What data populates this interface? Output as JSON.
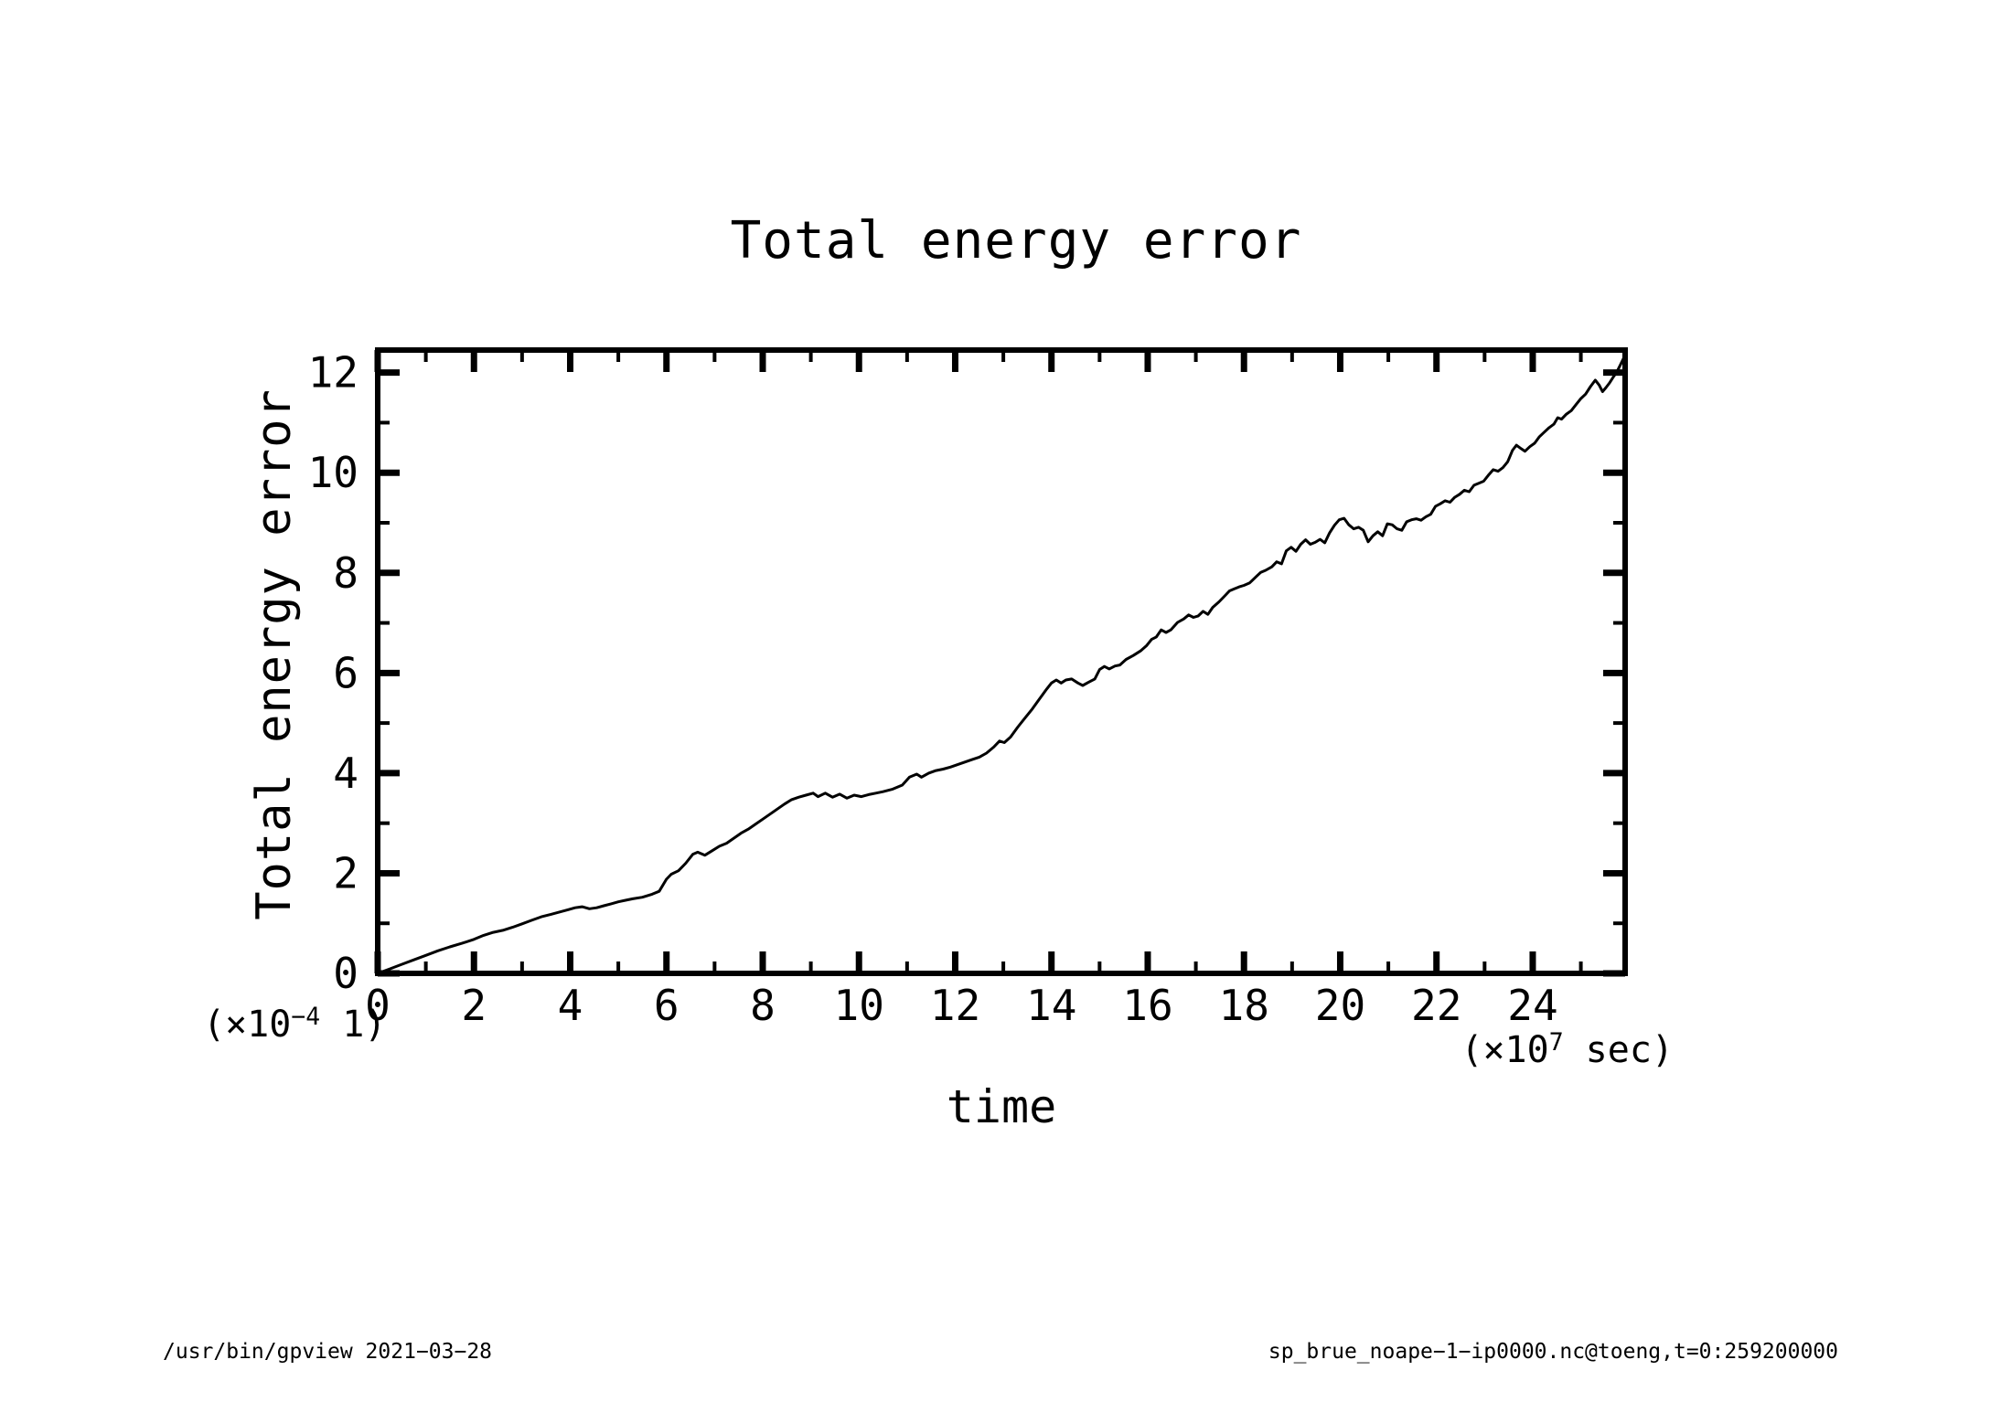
{
  "page": {
    "background": "#ffffff",
    "ink": "#000000"
  },
  "header": {
    "title": "Total energy error"
  },
  "axes": {
    "x": {
      "label": "time",
      "unit": {
        "prefix": "(×10",
        "sup": "7",
        "suffix": " sec)"
      },
      "tick_labels": [
        "0",
        "2",
        "4",
        "6",
        "8",
        "10",
        "12",
        "14",
        "16",
        "18",
        "20",
        "22",
        "24"
      ]
    },
    "y": {
      "label": "Total energy error",
      "unit": {
        "prefix": "(×10",
        "sup": "−4",
        "suffix": " 1)"
      },
      "tick_labels": [
        "0",
        "2",
        "4",
        "6",
        "8",
        "10",
        "12"
      ]
    }
  },
  "footer": {
    "left": "/usr/bin/gpview  2021−03−28",
    "right": "sp_brue_noape−1−ip0000.nc@toeng,t=0:259200000"
  },
  "chart_data": {
    "type": "line",
    "title": "Total energy error",
    "xlabel": "time",
    "ylabel": "Total energy error",
    "x_unit_annotation": "(×10^7 sec)",
    "y_unit_annotation": "(×10^-4 1)",
    "xlim": [
      0,
      25.92
    ],
    "ylim": [
      0,
      12.45
    ],
    "x_major_ticks": [
      0,
      2,
      4,
      6,
      8,
      10,
      12,
      14,
      16,
      18,
      20,
      22,
      24
    ],
    "x_minor_ticks": [
      1,
      3,
      5,
      7,
      9,
      11,
      13,
      15,
      17,
      19,
      21,
      23,
      25
    ],
    "y_major_ticks": [
      0,
      2,
      4,
      6,
      8,
      10,
      12
    ],
    "y_minor_ticks": [
      1,
      3,
      5,
      7,
      9,
      11
    ],
    "grid": false,
    "legend": null,
    "line_color": "#000000",
    "series": [
      {
        "name": "total energy error",
        "points": [
          [
            0,
            0
          ],
          [
            0.25,
            0.09
          ],
          [
            0.5,
            0.18
          ],
          [
            0.75,
            0.27
          ],
          [
            1,
            0.36
          ],
          [
            1.25,
            0.45
          ],
          [
            1.5,
            0.53
          ],
          [
            1.75,
            0.6
          ],
          [
            2,
            0.68
          ],
          [
            2.2,
            0.76
          ],
          [
            2.4,
            0.82
          ],
          [
            2.6,
            0.86
          ],
          [
            2.8,
            0.92
          ],
          [
            3,
            0.99
          ],
          [
            3.2,
            1.06
          ],
          [
            3.4,
            1.13
          ],
          [
            3.6,
            1.18
          ],
          [
            3.8,
            1.23
          ],
          [
            3.95,
            1.27
          ],
          [
            4.1,
            1.31
          ],
          [
            4.25,
            1.33
          ],
          [
            4.4,
            1.29
          ],
          [
            4.55,
            1.31
          ],
          [
            4.7,
            1.35
          ],
          [
            4.85,
            1.39
          ],
          [
            5,
            1.43
          ],
          [
            5.15,
            1.46
          ],
          [
            5.3,
            1.49
          ],
          [
            5.5,
            1.52
          ],
          [
            5.7,
            1.58
          ],
          [
            5.85,
            1.64
          ],
          [
            6,
            1.88
          ],
          [
            6.1,
            1.98
          ],
          [
            6.25,
            2.05
          ],
          [
            6.4,
            2.2
          ],
          [
            6.55,
            2.38
          ],
          [
            6.65,
            2.42
          ],
          [
            6.8,
            2.36
          ],
          [
            6.95,
            2.45
          ],
          [
            7.1,
            2.54
          ],
          [
            7.25,
            2.6
          ],
          [
            7.4,
            2.7
          ],
          [
            7.55,
            2.8
          ],
          [
            7.7,
            2.88
          ],
          [
            7.85,
            2.98
          ],
          [
            8,
            3.08
          ],
          [
            8.15,
            3.18
          ],
          [
            8.3,
            3.28
          ],
          [
            8.45,
            3.38
          ],
          [
            8.6,
            3.47
          ],
          [
            8.75,
            3.52
          ],
          [
            8.9,
            3.56
          ],
          [
            9.05,
            3.6
          ],
          [
            9.15,
            3.53
          ],
          [
            9.3,
            3.6
          ],
          [
            9.45,
            3.52
          ],
          [
            9.6,
            3.58
          ],
          [
            9.75,
            3.5
          ],
          [
            9.9,
            3.56
          ],
          [
            10.05,
            3.53
          ],
          [
            10.2,
            3.57
          ],
          [
            10.35,
            3.6
          ],
          [
            10.5,
            3.63
          ],
          [
            10.7,
            3.68
          ],
          [
            10.9,
            3.76
          ],
          [
            11.05,
            3.92
          ],
          [
            11.2,
            3.98
          ],
          [
            11.3,
            3.92
          ],
          [
            11.45,
            4
          ],
          [
            11.6,
            4.05
          ],
          [
            11.75,
            4.08
          ],
          [
            11.9,
            4.12
          ],
          [
            12.05,
            4.17
          ],
          [
            12.2,
            4.22
          ],
          [
            12.35,
            4.27
          ],
          [
            12.5,
            4.32
          ],
          [
            12.65,
            4.4
          ],
          [
            12.8,
            4.52
          ],
          [
            12.92,
            4.64
          ],
          [
            13.02,
            4.61
          ],
          [
            13.15,
            4.72
          ],
          [
            13.3,
            4.92
          ],
          [
            13.45,
            5.1
          ],
          [
            13.6,
            5.28
          ],
          [
            13.75,
            5.48
          ],
          [
            13.9,
            5.68
          ],
          [
            14,
            5.8
          ],
          [
            14.1,
            5.86
          ],
          [
            14.2,
            5.8
          ],
          [
            14.3,
            5.86
          ],
          [
            14.42,
            5.88
          ],
          [
            14.55,
            5.8
          ],
          [
            14.65,
            5.75
          ],
          [
            14.78,
            5.82
          ],
          [
            14.9,
            5.88
          ],
          [
            15,
            6.07
          ],
          [
            15.1,
            6.13
          ],
          [
            15.2,
            6.08
          ],
          [
            15.32,
            6.14
          ],
          [
            15.42,
            6.16
          ],
          [
            15.55,
            6.27
          ],
          [
            15.7,
            6.35
          ],
          [
            15.85,
            6.44
          ],
          [
            15.98,
            6.55
          ],
          [
            16.08,
            6.67
          ],
          [
            16.18,
            6.72
          ],
          [
            16.28,
            6.86
          ],
          [
            16.38,
            6.81
          ],
          [
            16.48,
            6.86
          ],
          [
            16.62,
            7.01
          ],
          [
            16.75,
            7.08
          ],
          [
            16.85,
            7.16
          ],
          [
            16.95,
            7.11
          ],
          [
            17.05,
            7.14
          ],
          [
            17.15,
            7.23
          ],
          [
            17.25,
            7.17
          ],
          [
            17.35,
            7.31
          ],
          [
            17.48,
            7.42
          ],
          [
            17.6,
            7.54
          ],
          [
            17.7,
            7.64
          ],
          [
            17.8,
            7.68
          ],
          [
            17.9,
            7.72
          ],
          [
            18,
            7.75
          ],
          [
            18.12,
            7.8
          ],
          [
            18.25,
            7.92
          ],
          [
            18.35,
            8.01
          ],
          [
            18.45,
            8.05
          ],
          [
            18.58,
            8.12
          ],
          [
            18.68,
            8.22
          ],
          [
            18.78,
            8.18
          ],
          [
            18.88,
            8.44
          ],
          [
            18.98,
            8.51
          ],
          [
            19.08,
            8.43
          ],
          [
            19.18,
            8.57
          ],
          [
            19.28,
            8.66
          ],
          [
            19.38,
            8.57
          ],
          [
            19.48,
            8.61
          ],
          [
            19.58,
            8.67
          ],
          [
            19.68,
            8.6
          ],
          [
            19.78,
            8.8
          ],
          [
            19.88,
            8.95
          ],
          [
            19.98,
            9.06
          ],
          [
            20.08,
            9.09
          ],
          [
            20.18,
            8.96
          ],
          [
            20.28,
            8.88
          ],
          [
            20.38,
            8.91
          ],
          [
            20.48,
            8.85
          ],
          [
            20.58,
            8.62
          ],
          [
            20.68,
            8.74
          ],
          [
            20.78,
            8.82
          ],
          [
            20.88,
            8.74
          ],
          [
            20.98,
            8.98
          ],
          [
            21.08,
            8.96
          ],
          [
            21.18,
            8.88
          ],
          [
            21.28,
            8.85
          ],
          [
            21.38,
            9.02
          ],
          [
            21.48,
            9.06
          ],
          [
            21.58,
            9.08
          ],
          [
            21.68,
            9.05
          ],
          [
            21.78,
            9.12
          ],
          [
            21.88,
            9.17
          ],
          [
            21.98,
            9.33
          ],
          [
            22.08,
            9.38
          ],
          [
            22.18,
            9.44
          ],
          [
            22.28,
            9.41
          ],
          [
            22.38,
            9.51
          ],
          [
            22.48,
            9.57
          ],
          [
            22.58,
            9.65
          ],
          [
            22.68,
            9.62
          ],
          [
            22.78,
            9.75
          ],
          [
            22.88,
            9.79
          ],
          [
            22.98,
            9.83
          ],
          [
            23.08,
            9.95
          ],
          [
            23.18,
            10.06
          ],
          [
            23.28,
            10.03
          ],
          [
            23.38,
            10.1
          ],
          [
            23.48,
            10.22
          ],
          [
            23.58,
            10.45
          ],
          [
            23.66,
            10.55
          ],
          [
            23.76,
            10.48
          ],
          [
            23.84,
            10.43
          ],
          [
            23.94,
            10.52
          ],
          [
            24.04,
            10.59
          ],
          [
            24.14,
            10.72
          ],
          [
            24.24,
            10.81
          ],
          [
            24.34,
            10.9
          ],
          [
            24.44,
            10.97
          ],
          [
            24.52,
            11.1
          ],
          [
            24.6,
            11.07
          ],
          [
            24.7,
            11.17
          ],
          [
            24.8,
            11.24
          ],
          [
            24.9,
            11.36
          ],
          [
            25,
            11.48
          ],
          [
            25.1,
            11.57
          ],
          [
            25.2,
            11.72
          ],
          [
            25.3,
            11.85
          ],
          [
            25.38,
            11.75
          ],
          [
            25.45,
            11.62
          ],
          [
            25.52,
            11.7
          ],
          [
            25.6,
            11.8
          ],
          [
            25.68,
            11.92
          ],
          [
            25.75,
            12.02
          ],
          [
            25.82,
            12.15
          ],
          [
            25.92,
            12.35
          ]
        ]
      }
    ]
  }
}
